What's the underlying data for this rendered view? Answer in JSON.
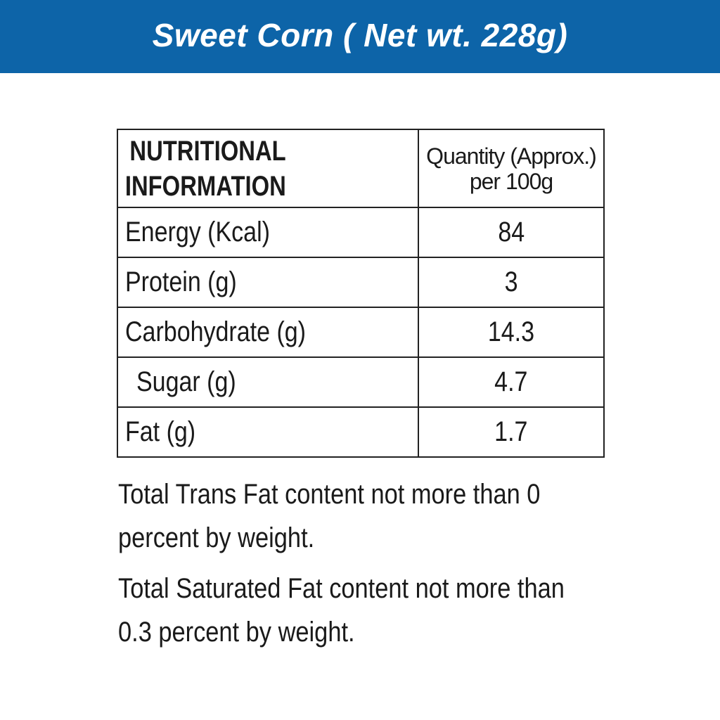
{
  "header": {
    "title": "Sweet Corn ( Net wt. 228g)",
    "background_color": "#0d64a8",
    "text_color": "#ffffff"
  },
  "table": {
    "header": {
      "nutrient_line1": "NUTRITIONAL",
      "nutrient_line2": "INFORMATION",
      "quantity_line1": "Quantity (Approx.)",
      "quantity_line2": "per 100g"
    },
    "rows": [
      {
        "name": "Energy (Kcal)",
        "value": "84"
      },
      {
        "name": "Protein (g)",
        "value": "3"
      },
      {
        "name": "Carbohydrate (g)",
        "value": "14.3"
      },
      {
        "name": "Sugar (g)",
        "value": "4.7"
      },
      {
        "name": "Fat (g)",
        "value": "1.7"
      }
    ]
  },
  "footnotes": [
    "Total Trans Fat content not more than 0 percent by weight.",
    "Total Saturated Fat content not more than 0.3 percent by weight."
  ]
}
